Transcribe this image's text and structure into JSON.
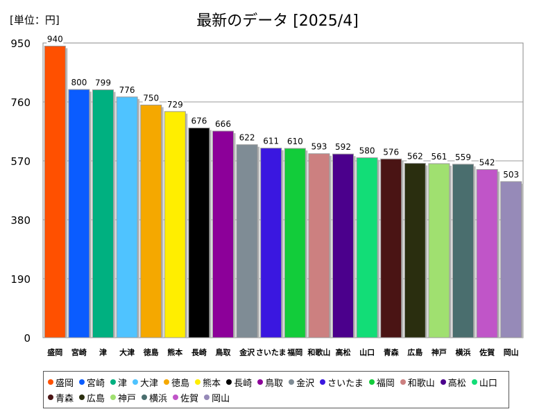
{
  "chart_data": {
    "type": "bar",
    "title": "最新のデータ [2025/4]",
    "unit_label": "[単位：円]",
    "yticks": [
      0,
      190,
      380,
      570,
      760,
      950
    ],
    "ylim": [
      0,
      950
    ],
    "grid": true,
    "legend_position": "bottom",
    "categories": [
      "盛岡",
      "宮崎",
      "津",
      "大津",
      "徳島",
      "熊本",
      "長崎",
      "鳥取",
      "金沢",
      "さいたま",
      "福岡",
      "和歌山",
      "高松",
      "山口",
      "青森",
      "広島",
      "神戸",
      "横浜",
      "佐賀",
      "岡山"
    ],
    "values": [
      940,
      800,
      799,
      776,
      750,
      729,
      676,
      666,
      622,
      611,
      610,
      593,
      592,
      580,
      576,
      562,
      561,
      559,
      542,
      503
    ],
    "colors": [
      "#ff5000",
      "#0a5cff",
      "#00b080",
      "#4fc3ff",
      "#f5a800",
      "#ffee00",
      "#000000",
      "#8c0099",
      "#7f8c95",
      "#3a17e0",
      "#12cc3a",
      "#cc8080",
      "#4b008c",
      "#12dd77",
      "#4a1414",
      "#2a2e0f",
      "#a0e070",
      "#4a6e6e",
      "#c055c8",
      "#968ab8"
    ]
  }
}
